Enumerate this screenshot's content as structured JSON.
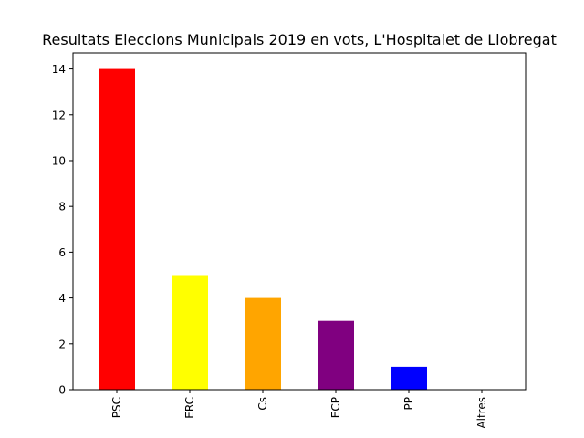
{
  "chart_data": {
    "type": "bar",
    "title": "Resultats Eleccions Municipals 2019 en vots, L'Hospitalet de Llobregat",
    "xlabel": "",
    "ylabel": "",
    "categories": [
      "PSC",
      "ERC",
      "Cs",
      "ECP",
      "PP",
      "Altres"
    ],
    "values": [
      14,
      5,
      4,
      3,
      1,
      0
    ],
    "colors": [
      "#ff0000",
      "#ffff00",
      "#ffa500",
      "#800080",
      "#0000ff",
      "#000000"
    ],
    "ylim": [
      0,
      14.7
    ],
    "yticks": [
      0,
      2,
      4,
      6,
      8,
      10,
      12,
      14
    ],
    "grid": false,
    "legend": "none"
  }
}
